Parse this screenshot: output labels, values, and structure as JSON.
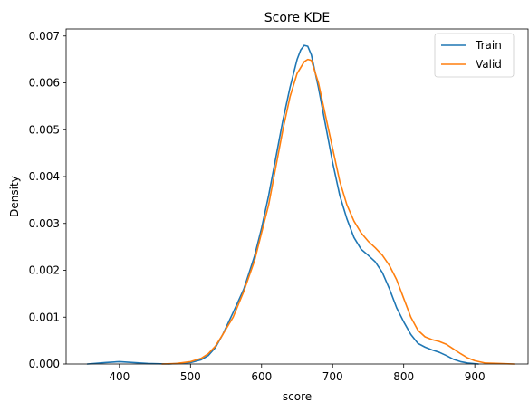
{
  "chart_data": {
    "type": "line",
    "title": "Score KDE",
    "xlabel": "score",
    "ylabel": "Density",
    "xlim": [
      325,
      975
    ],
    "ylim": [
      0,
      0.00715
    ],
    "xticks": [
      400,
      500,
      600,
      700,
      800,
      900
    ],
    "yticks": [
      0.0,
      0.001,
      0.002,
      0.003,
      0.004,
      0.005,
      0.006,
      0.007
    ],
    "ytick_labels": [
      "0.000",
      "0.001",
      "0.002",
      "0.003",
      "0.004",
      "0.005",
      "0.006",
      "0.007"
    ],
    "grid": false,
    "legend_position": "top-right",
    "series": [
      {
        "name": "Train",
        "color": "#1f77b4",
        "points": [
          [
            355,
            0.0
          ],
          [
            380,
            3e-05
          ],
          [
            400,
            5e-05
          ],
          [
            420,
            3e-05
          ],
          [
            440,
            1e-05
          ],
          [
            470,
            0.0
          ],
          [
            500,
            3e-05
          ],
          [
            515,
            9e-05
          ],
          [
            525,
            0.00018
          ],
          [
            535,
            0.00035
          ],
          [
            545,
            0.00062
          ],
          [
            560,
            0.0011
          ],
          [
            575,
            0.0016
          ],
          [
            590,
            0.0023
          ],
          [
            600,
            0.0029
          ],
          [
            610,
            0.0036
          ],
          [
            620,
            0.0044
          ],
          [
            630,
            0.0052
          ],
          [
            640,
            0.0059
          ],
          [
            650,
            0.0065
          ],
          [
            655,
            0.0067
          ],
          [
            660,
            0.0068
          ],
          [
            665,
            0.00678
          ],
          [
            670,
            0.0066
          ],
          [
            680,
            0.0059
          ],
          [
            690,
            0.0051
          ],
          [
            700,
            0.0043
          ],
          [
            710,
            0.0036
          ],
          [
            720,
            0.0031
          ],
          [
            730,
            0.0027
          ],
          [
            740,
            0.00245
          ],
          [
            750,
            0.00232
          ],
          [
            760,
            0.00218
          ],
          [
            770,
            0.00195
          ],
          [
            780,
            0.0016
          ],
          [
            790,
            0.0012
          ],
          [
            800,
            0.0009
          ],
          [
            810,
            0.00063
          ],
          [
            820,
            0.00044
          ],
          [
            830,
            0.00036
          ],
          [
            840,
            0.0003
          ],
          [
            850,
            0.00025
          ],
          [
            860,
            0.00018
          ],
          [
            870,
            0.0001
          ],
          [
            880,
            5e-05
          ],
          [
            890,
            2e-05
          ],
          [
            905,
            0.0
          ]
        ]
      },
      {
        "name": "Valid",
        "color": "#ff7f0e",
        "points": [
          [
            460,
            0.0
          ],
          [
            480,
            1e-05
          ],
          [
            500,
            5e-05
          ],
          [
            515,
            0.00012
          ],
          [
            525,
            0.00022
          ],
          [
            535,
            0.00038
          ],
          [
            545,
            0.00062
          ],
          [
            560,
            0.001
          ],
          [
            575,
            0.00155
          ],
          [
            590,
            0.0022
          ],
          [
            600,
            0.0028
          ],
          [
            610,
            0.0034
          ],
          [
            620,
            0.0042
          ],
          [
            630,
            0.005
          ],
          [
            640,
            0.0057
          ],
          [
            650,
            0.0062
          ],
          [
            660,
            0.00645
          ],
          [
            665,
            0.0065
          ],
          [
            670,
            0.00648
          ],
          [
            680,
            0.006
          ],
          [
            690,
            0.0053
          ],
          [
            700,
            0.0046
          ],
          [
            710,
            0.0039
          ],
          [
            720,
            0.0034
          ],
          [
            730,
            0.00305
          ],
          [
            740,
            0.0028
          ],
          [
            750,
            0.00262
          ],
          [
            760,
            0.00248
          ],
          [
            770,
            0.00232
          ],
          [
            780,
            0.0021
          ],
          [
            790,
            0.0018
          ],
          [
            800,
            0.0014
          ],
          [
            810,
            0.001
          ],
          [
            820,
            0.00072
          ],
          [
            830,
            0.00058
          ],
          [
            840,
            0.00052
          ],
          [
            850,
            0.00048
          ],
          [
            860,
            0.00042
          ],
          [
            870,
            0.00032
          ],
          [
            880,
            0.00022
          ],
          [
            890,
            0.00013
          ],
          [
            900,
            7e-05
          ],
          [
            915,
            2e-05
          ],
          [
            935,
            1e-05
          ],
          [
            955,
            0.0
          ]
        ]
      }
    ]
  }
}
